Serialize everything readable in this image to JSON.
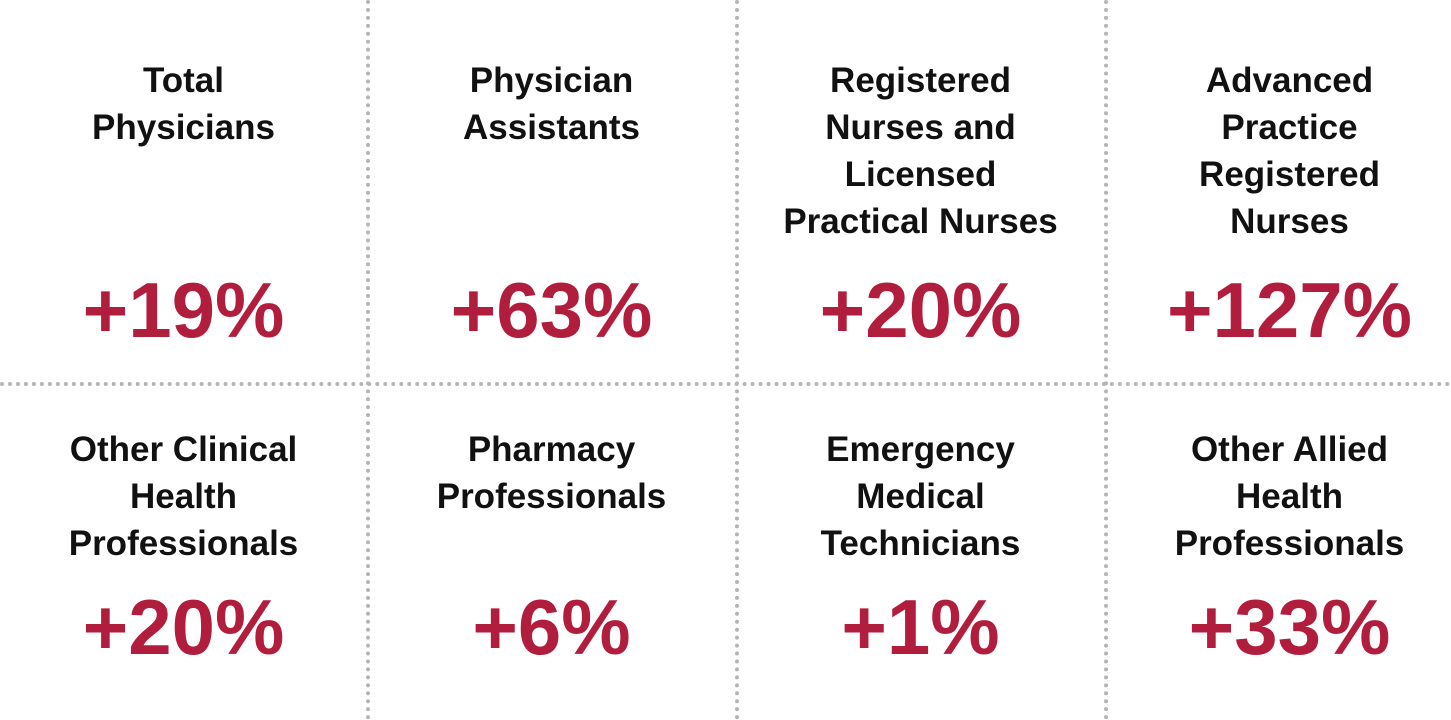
{
  "tiles": [
    {
      "label": [
        "Total",
        "Physicians"
      ],
      "value": "+19%"
    },
    {
      "label": [
        "Physician",
        "Assistants"
      ],
      "value": "+63%"
    },
    {
      "label": [
        "Registered",
        "Nurses and",
        "Licensed",
        "Practical Nurses"
      ],
      "value": "+20%"
    },
    {
      "label": [
        "Advanced",
        "Practice",
        "Registered",
        "Nurses"
      ],
      "value": "+127%"
    },
    {
      "label": [
        "Other Clinical",
        "Health",
        "Professionals"
      ],
      "value": "+20%"
    },
    {
      "label": [
        "Pharmacy",
        "Professionals"
      ],
      "value": "+6%"
    },
    {
      "label": [
        "Emergency",
        "Medical",
        "Technicians"
      ],
      "value": "+1%"
    },
    {
      "label": [
        "Other Allied",
        "Health",
        "Professionals"
      ],
      "value": "+33%"
    }
  ]
}
